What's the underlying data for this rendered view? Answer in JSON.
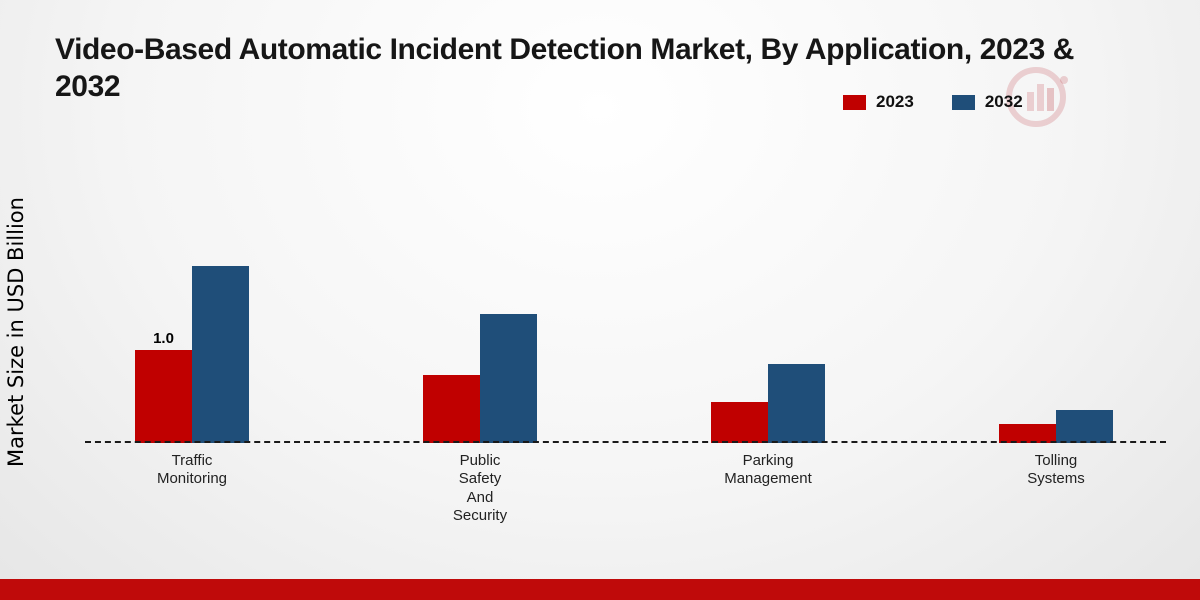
{
  "chart_data": {
    "type": "bar",
    "title": "Video-Based Automatic Incident Detection Market, By Application, 2023 & 2032",
    "xlabel": "",
    "ylabel": "Market Size in USD Billion",
    "ylim": [
      0,
      2
    ],
    "grid": false,
    "legend_position": "top-right",
    "baseline_style": "dashed",
    "categories": [
      "Traffic Monitoring",
      "Public Safety And Security",
      "Parking Management",
      "Tolling Systems"
    ],
    "category_label_lines": [
      [
        "Traffic",
        "Monitoring"
      ],
      [
        "Public",
        "Safety",
        "And",
        "Security"
      ],
      [
        "Parking",
        "Management"
      ],
      [
        "Tolling",
        "Systems"
      ]
    ],
    "series": [
      {
        "name": "2023",
        "color": "#c00000",
        "values": [
          1.0,
          0.73,
          0.44,
          0.2
        ],
        "value_labels": [
          "1.0",
          "",
          "",
          ""
        ]
      },
      {
        "name": "2032",
        "color": "#1f4e79",
        "values": [
          1.9,
          1.39,
          0.85,
          0.35
        ],
        "value_labels": [
          "",
          "",
          "",
          ""
        ]
      }
    ]
  },
  "footer": {
    "strip_color": "#bf0a0a"
  },
  "watermark": {
    "name": "brand-logo-watermark",
    "color": "#b01e28"
  }
}
